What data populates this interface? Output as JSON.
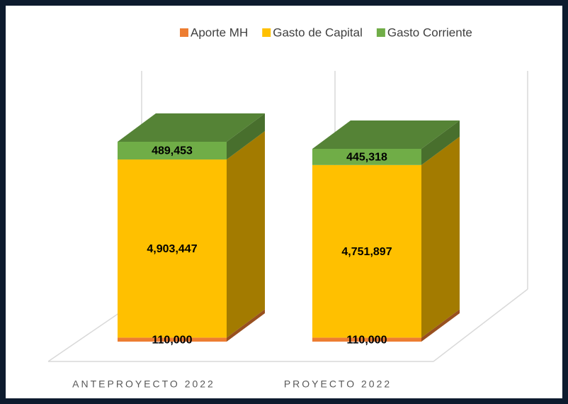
{
  "chart_data": {
    "type": "bar3d_stacked",
    "categories": [
      "ANTEPROYECTO 2022",
      "PROYECTO 2022"
    ],
    "series": [
      {
        "name": "Aporte MH",
        "color": "#ed7d31",
        "values": [
          110000,
          110000
        ],
        "value_labels": [
          "110,000",
          "110,000"
        ]
      },
      {
        "name": "Gasto de Capital",
        "color": "#ffc000",
        "values": [
          4903447,
          4751897
        ],
        "value_labels": [
          "4,903,447",
          "4,751,897"
        ]
      },
      {
        "name": "Gasto Corriente",
        "color": "#70ad47",
        "values": [
          489453,
          445318
        ],
        "value_labels": [
          "489,453",
          "445,318"
        ]
      }
    ],
    "ylim": [
      0,
      6000000
    ],
    "legend": "top"
  }
}
